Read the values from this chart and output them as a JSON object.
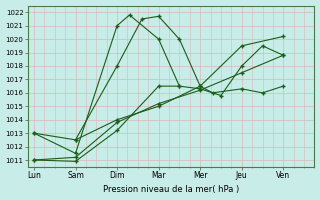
{
  "background_color": "#c8ede8",
  "grid_color": "#d8b8b8",
  "line_color": "#1a5c1a",
  "x_labels": [
    "Lun",
    "Sam",
    "Dim",
    "Mar",
    "Mer",
    "Jeu",
    "Ven"
  ],
  "x_positions": [
    0,
    1,
    2,
    3,
    4,
    5,
    6
  ],
  "ylim": [
    1010.5,
    1022.5
  ],
  "yticks": [
    1011,
    1012,
    1013,
    1014,
    1015,
    1016,
    1017,
    1018,
    1019,
    1020,
    1021,
    1022
  ],
  "xlabel": "Pression niveau de la mer( hPa )",
  "series": [
    {
      "x": [
        0,
        1,
        2,
        2.3,
        3,
        3.5
      ],
      "y": [
        1013.0,
        1011.5,
        1021.0,
        1021.8,
        1020.0,
        1016.5
      ]
    },
    {
      "x": [
        1,
        2,
        2.6,
        3,
        3.5,
        4,
        4.3,
        5,
        5.5,
        6
      ],
      "y": [
        1012.5,
        1018.0,
        1021.5,
        1021.7,
        1020.0,
        1016.5,
        1016.0,
        1016.3,
        1016.0,
        1016.5
      ]
    },
    {
      "x": [
        0,
        1,
        2,
        3,
        3.5,
        4,
        4.5,
        5,
        5.5,
        6
      ],
      "y": [
        1011.0,
        1010.9,
        1013.2,
        1016.5,
        1016.5,
        1016.3,
        1015.8,
        1018.0,
        1019.5,
        1018.8
      ]
    },
    {
      "x": [
        0,
        1,
        2,
        3,
        4,
        5,
        6
      ],
      "y": [
        1011.0,
        1011.2,
        1013.8,
        1015.2,
        1016.2,
        1017.5,
        1018.8
      ]
    },
    {
      "x": [
        0,
        1,
        2,
        3,
        4,
        5,
        6
      ],
      "y": [
        1013.0,
        1012.5,
        1014.0,
        1015.0,
        1016.5,
        1019.5,
        1020.2
      ]
    }
  ]
}
